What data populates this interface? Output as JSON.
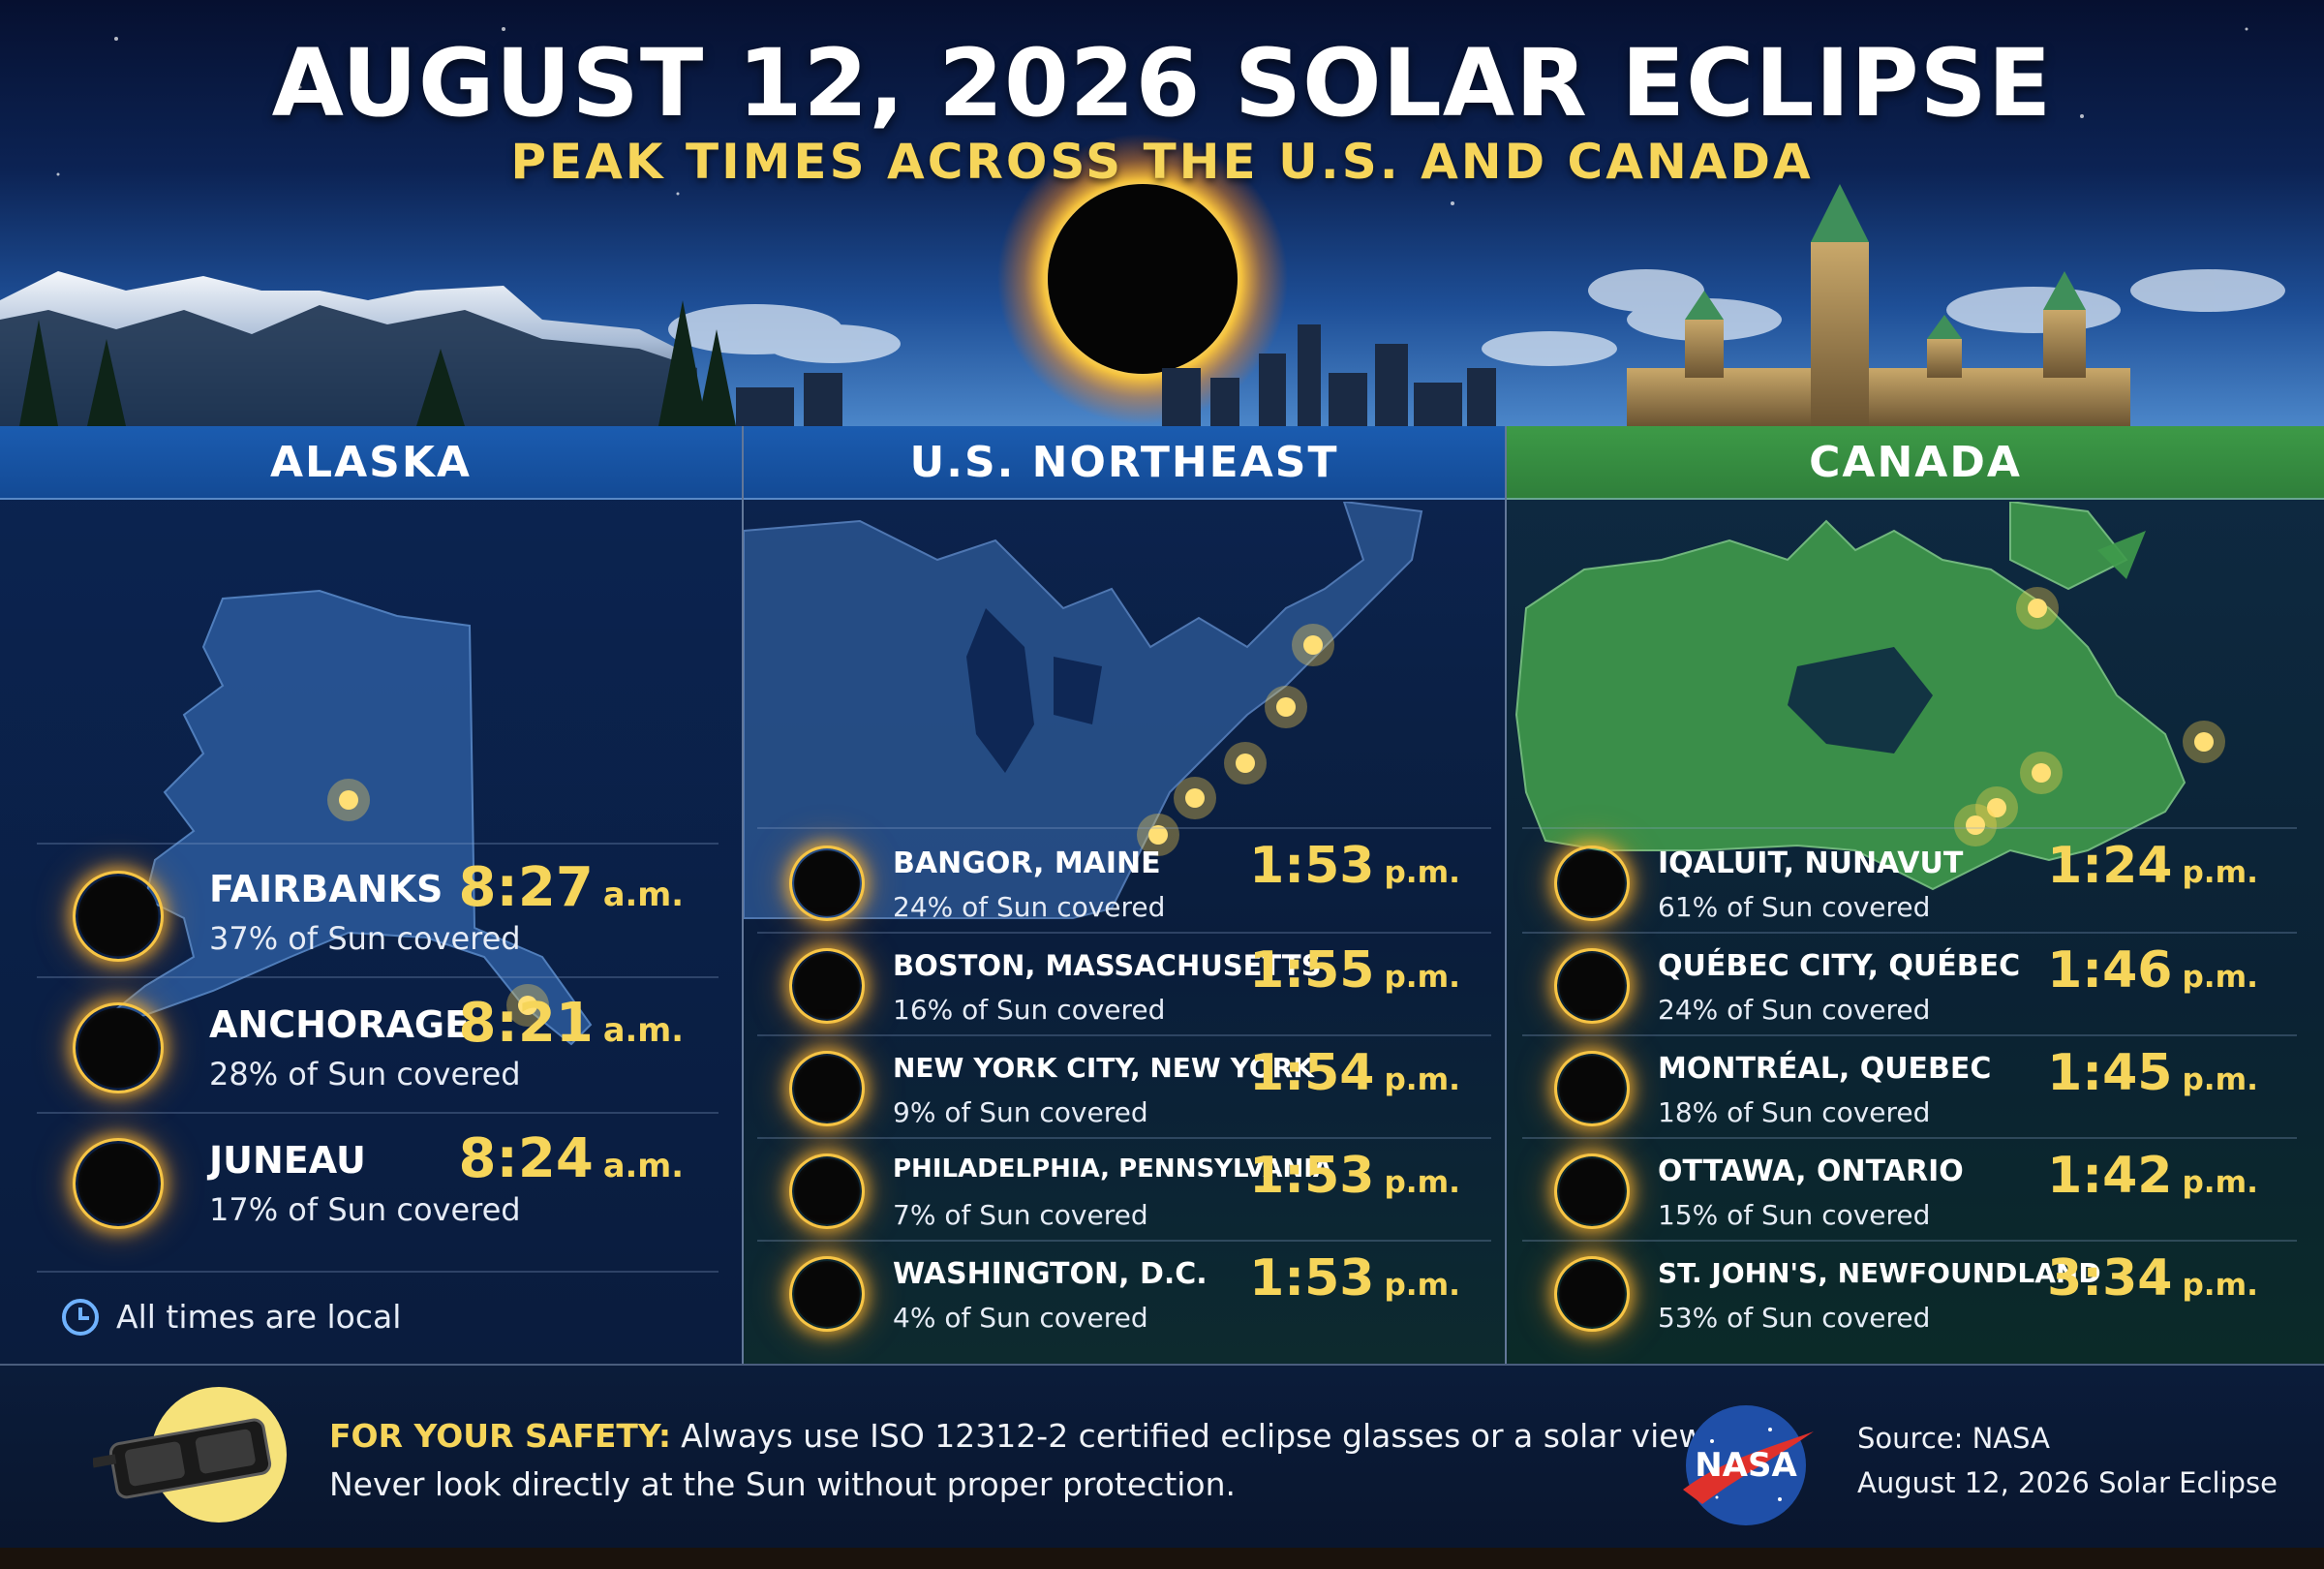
{
  "header": {
    "title": "AUGUST 12, 2026 SOLAR ECLIPSE",
    "subtitle": "PEAK TIMES ACROSS THE U.S. AND CANADA"
  },
  "panels": {
    "alaska": {
      "title": "ALASKA",
      "cities": [
        {
          "name": "FAIRBANKS",
          "coverage": "37% of Sun covered",
          "time": "8:27",
          "ampm": "a.m."
        },
        {
          "name": "ANCHORAGE",
          "coverage": "28% of Sun covered",
          "time": "8:21",
          "ampm": "a.m."
        },
        {
          "name": "JUNEAU",
          "coverage": "17% of Sun covered",
          "time": "8:24",
          "ampm": "a.m."
        }
      ],
      "note": "All times are local"
    },
    "northeast": {
      "title": "U.S. NORTHEAST",
      "cities": [
        {
          "name": "BANGOR, MAINE",
          "coverage": "24% of Sun covered",
          "time": "1:53",
          "ampm": "p.m."
        },
        {
          "name": "BOSTON, MASSACHUSETTS",
          "coverage": "16% of Sun covered",
          "time": "1:55",
          "ampm": "p.m."
        },
        {
          "name": "NEW YORK CITY, NEW YORK",
          "coverage": "9% of Sun covered",
          "time": "1:54",
          "ampm": "p.m."
        },
        {
          "name": "PHILADELPHIA, PENNSYLVANIA",
          "coverage": "7% of Sun covered",
          "time": "1:53",
          "ampm": "p.m."
        },
        {
          "name": "WASHINGTON, D.C.",
          "coverage": "4% of Sun covered",
          "time": "1:53",
          "ampm": "p.m."
        }
      ]
    },
    "canada": {
      "title": "CANADA",
      "cities": [
        {
          "name": "IQALUIT, NUNAVUT",
          "coverage": "61% of Sun covered",
          "time": "1:24",
          "ampm": "p.m."
        },
        {
          "name": "QUÉBEC CITY, QUÉBEC",
          "coverage": "24% of Sun covered",
          "time": "1:46",
          "ampm": "p.m."
        },
        {
          "name": "MONTRÉAL, QUEBEC",
          "coverage": "18% of Sun covered",
          "time": "1:45",
          "ampm": "p.m."
        },
        {
          "name": "OTTAWA, ONTARIO",
          "coverage": "15% of Sun covered",
          "time": "1:42",
          "ampm": "p.m."
        },
        {
          "name": "ST. JOHN'S, NEWFOUNDLAND",
          "coverage": "53% of Sun covered",
          "time": "3:34",
          "ampm": "p.m."
        }
      ]
    }
  },
  "footer": {
    "safety_lead": "FOR YOUR SAFETY:",
    "safety_line1": "Always use ISO 12312-2 certified eclipse glasses or a solar viewer.",
    "safety_line2": "Never look directly at the Sun without proper protection.",
    "logo_text": "NASA",
    "source_line1": "Source: NASA",
    "source_line2": "August 12, 2026 Solar Eclipse"
  },
  "icons": {
    "eclipse": "solar-eclipse-icon",
    "clock": "clock-icon",
    "glasses": "eclipse-glasses-icon",
    "logo": "nasa-logo"
  },
  "colors": {
    "accent_yellow": "#f6d55a",
    "header_blue": "#1b5cb0",
    "header_green": "#3d9a47",
    "clock_blue": "#6fb2ff"
  }
}
